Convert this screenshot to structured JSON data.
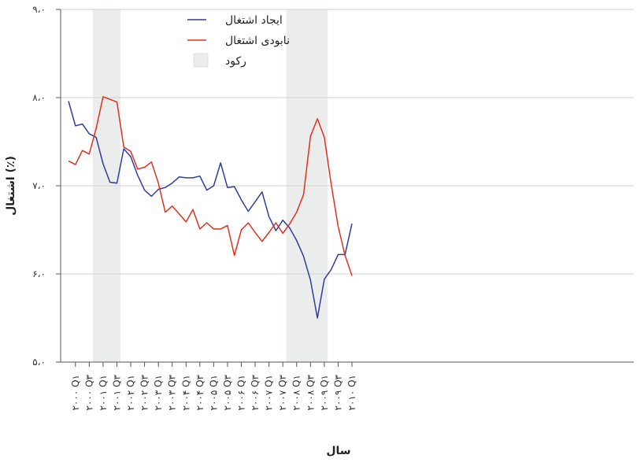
{
  "chart_data": {
    "type": "line",
    "title": "",
    "xlabel": "سال",
    "ylabel": "اشتغال (٪)",
    "ylim": [
      5.0,
      9.0
    ],
    "y_ticks": [
      "۵،۰",
      "۶،۰",
      "۷،۰",
      "۸،۰",
      "۹،۰"
    ],
    "y_tick_values": [
      5,
      6,
      7,
      8,
      9
    ],
    "grid": true,
    "legend_position": "top-left",
    "x": [
      "2000Q1",
      "2000Q2",
      "2000Q3",
      "2000Q4",
      "2001Q1",
      "2001Q2",
      "2001Q3",
      "2001Q4",
      "2002Q1",
      "2002Q2",
      "2002Q3",
      "2002Q4",
      "2003Q1",
      "2003Q2",
      "2003Q3",
      "2003Q4",
      "2004Q1",
      "2004Q2",
      "2004Q3",
      "2004Q4",
      "2005Q1",
      "2005Q2",
      "2005Q3",
      "2005Q4",
      "2006Q1",
      "2006Q2",
      "2006Q3",
      "2006Q4",
      "2007Q1",
      "2007Q2",
      "2007Q3",
      "2007Q4",
      "2008Q1",
      "2008Q2",
      "2008Q3",
      "2008Q4",
      "2009Q1",
      "2009Q2",
      "2009Q3",
      "2009Q4",
      "2010Q1",
      "2010Q2"
    ],
    "x_tick_labels": [
      "۲۰۰۰ Q۱",
      "۲۰۰۰ Q۳",
      "۲۰۰۱ Q۱",
      "۲۰۰۱ Q۳",
      "۲۰۰۲ Q۱",
      "۲۰۰۲ Q۳",
      "۲۰۰۳ Q۱",
      "۲۰۰۳ Q۳",
      "۲۰۰۴ Q۱",
      "۲۰۰۴ Q۳",
      "۲۰۰۵ Q۱",
      "۲۰۰۵ Q۳",
      "۲۰۰۶ Q۱",
      "۲۰۰۶ Q۳",
      "۲۰۰۷ Q۱",
      "۲۰۰۷ Q۳",
      "۲۰۰۸ Q۱",
      "۲۰۰۸ Q۳",
      "۲۰۰۹ Q۱",
      "۲۰۰۹ Q۳",
      "۲۰۱۰ Q۱"
    ],
    "recession_periods": [
      [
        "2001Q1",
        "2001Q4"
      ],
      [
        "2008Q1",
        "2009Q2"
      ]
    ],
    "series": [
      {
        "name": "ایجاد اشتغال",
        "color": "#2e3d9a",
        "values": [
          7.96,
          7.68,
          7.7,
          7.59,
          7.55,
          7.25,
          7.04,
          7.03,
          7.42,
          7.33,
          7.12,
          6.95,
          6.88,
          6.96,
          6.98,
          7.03,
          7.1,
          7.09,
          7.09,
          7.11,
          6.95,
          7.0,
          7.26,
          6.98,
          6.99,
          6.84,
          6.71,
          6.82,
          6.93,
          6.65,
          6.49,
          6.61,
          6.52,
          6.38,
          6.2,
          5.93,
          5.5,
          5.94,
          6.05,
          6.22,
          6.22,
          6.57
        ]
      },
      {
        "name": "نابودی اشتغال",
        "color": "#e0301e",
        "values": [
          7.28,
          7.24,
          7.4,
          7.36,
          7.65,
          8.01,
          7.98,
          7.95,
          7.44,
          7.39,
          7.19,
          7.21,
          7.27,
          7.03,
          6.7,
          6.77,
          6.68,
          6.59,
          6.73,
          6.51,
          6.58,
          6.51,
          6.51,
          6.55,
          6.21,
          6.5,
          6.58,
          6.47,
          6.37,
          6.47,
          6.58,
          6.46,
          6.57,
          6.7,
          6.9,
          7.56,
          7.76,
          7.55,
          7.02,
          6.54,
          6.21,
          5.98
        ]
      }
    ],
    "legend": {
      "creation_label": "ایجاد اشتغال",
      "destruction_label": "نابودی اشتغال",
      "recession_label": "رکود"
    },
    "colors": {
      "recession": "#ebecec",
      "grid": "#cfcfcf",
      "axis": "#555555"
    }
  }
}
